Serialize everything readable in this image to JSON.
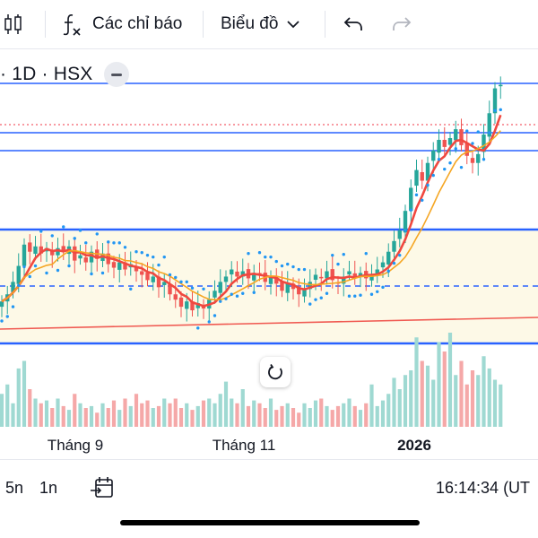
{
  "toolbar": {
    "candle_icon": "candlestick-icon",
    "indicators_label": "Các chỉ báo",
    "chart_menu_label": "Biểu đồ",
    "undo_icon": "undo-arrow-icon",
    "redo_icon": "redo-arrow-icon"
  },
  "symbol": {
    "info": "· 1D · HSX"
  },
  "chart_data": {
    "type": "candlestick",
    "x_tick_labels": [
      "Tháng 9",
      "Tháng 11",
      "2026"
    ],
    "colors": {
      "up": "#26a69a",
      "down": "#ef5350",
      "volume_up": "#9fd9d2",
      "volume_down": "#f5a8a8",
      "sma_fast": "#f0483f",
      "sma_slow": "#f5a623",
      "parabolic_sar": "#2196f3",
      "horizontal_lines": "#2962ff",
      "trend_line": "#f05a52",
      "highlight_zone": "#fdf9e7",
      "last_price_line": "#f23645"
    },
    "description_note": "Daily candlestick chart with moving averages, parabolic SAR dots, blue horizontal support/resistance lines, a red trend line and a volume histogram.",
    "closes": [
      23.8,
      24.2,
      24.9,
      25.8,
      27.0,
      26.6,
      26.9,
      26.5,
      26.8,
      26.4,
      26.8,
      26.6,
      26.9,
      26.1,
      26.4,
      26.0,
      26.6,
      26.2,
      26.5,
      25.9,
      25.7,
      26.0,
      25.6,
      25.9,
      25.5,
      25.3,
      25.0,
      25.2,
      24.6,
      24.9,
      24.2,
      23.9,
      23.5,
      23.8,
      23.3,
      23.7,
      23.4,
      23.9,
      24.4,
      24.9,
      25.2,
      25.6,
      25.2,
      25.5,
      25.1,
      25.4,
      25.3,
      24.9,
      25.2,
      24.8,
      24.4,
      24.8,
      24.5,
      24.2,
      24.5,
      24.9,
      25.3,
      25.1,
      25.5,
      25.0,
      24.8,
      25.2,
      25.5,
      25.2,
      25.4,
      25.1,
      25.3,
      25.6,
      26.0,
      26.6,
      27.2,
      27.8,
      28.9,
      30.2,
      31.2,
      30.6,
      31.6,
      32.3,
      32.9,
      32.5,
      33.0,
      33.5,
      32.6,
      32.0,
      31.6,
      32.1,
      33.2,
      34.4,
      35.8,
      36.0
    ],
    "volume_relative": [
      0.35,
      0.45,
      0.25,
      0.62,
      0.7,
      0.4,
      0.3,
      0.25,
      0.28,
      0.2,
      0.3,
      0.22,
      0.18,
      0.35,
      0.25,
      0.2,
      0.22,
      0.15,
      0.25,
      0.2,
      0.28,
      0.18,
      0.3,
      0.22,
      0.35,
      0.25,
      0.28,
      0.2,
      0.22,
      0.3,
      0.25,
      0.3,
      0.2,
      0.25,
      0.18,
      0.22,
      0.28,
      0.3,
      0.25,
      0.35,
      0.48,
      0.3,
      0.25,
      0.4,
      0.22,
      0.28,
      0.25,
      0.2,
      0.3,
      0.18,
      0.22,
      0.25,
      0.2,
      0.15,
      0.25,
      0.2,
      0.28,
      0.3,
      0.22,
      0.18,
      0.22,
      0.25,
      0.3,
      0.22,
      0.18,
      0.25,
      0.45,
      0.22,
      0.28,
      0.35,
      0.52,
      0.4,
      0.55,
      0.6,
      0.95,
      0.7,
      0.65,
      0.5,
      0.9,
      0.8,
      1.0,
      0.55,
      0.7,
      0.45,
      0.6,
      0.55,
      0.75,
      0.62,
      0.5,
      0.45
    ]
  },
  "reset_icon": "reset-rotate-icon",
  "bottom": {
    "range_5d": "5n",
    "range_1d": "1n",
    "goto_date_icon": "calendar-goto-icon",
    "clock": "16:14:34 (UT"
  }
}
